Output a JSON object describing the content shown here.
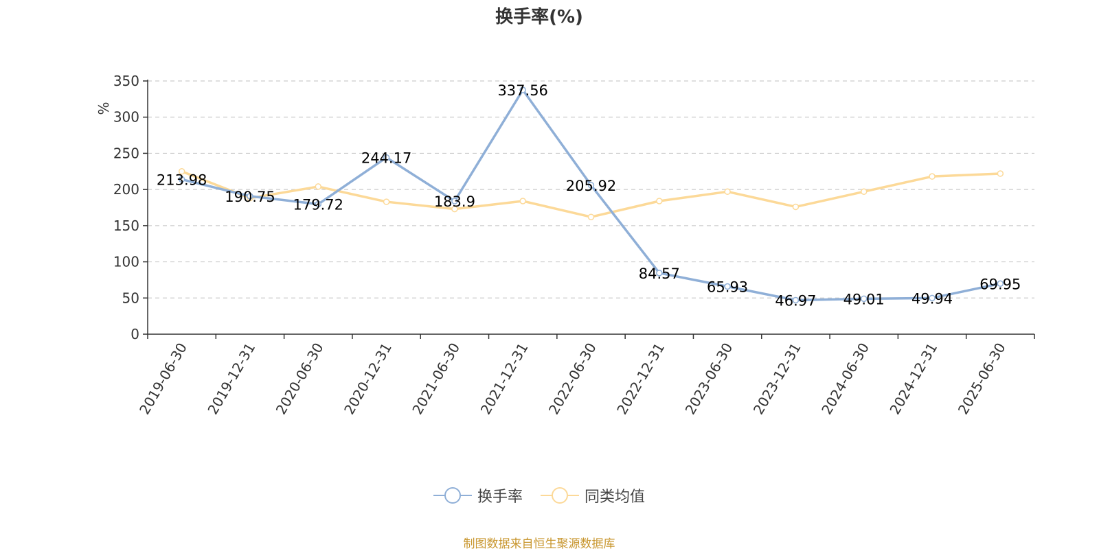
{
  "chart_data": {
    "type": "line",
    "title": "换手率(%)",
    "ylabel": "%",
    "xlabel": "",
    "ylim": [
      0,
      350
    ],
    "yticks": [
      0,
      50,
      100,
      150,
      200,
      250,
      300,
      350
    ],
    "grid": true,
    "legend_position": "bottom",
    "categories": [
      "2019-06-30",
      "2019-12-31",
      "2020-06-30",
      "2020-12-31",
      "2021-06-30",
      "2021-12-31",
      "2022-06-30",
      "2022-12-31",
      "2023-06-30",
      "2023-12-31",
      "2024-06-30",
      "2024-12-31",
      "2025-06-30"
    ],
    "series": [
      {
        "name": "换手率",
        "color": "#8fafd7",
        "values": [
          213.98,
          190.75,
          179.72,
          244.17,
          183.9,
          337.56,
          205.92,
          84.57,
          65.93,
          46.97,
          49.01,
          49.94,
          69.95
        ],
        "labels": [
          "213.98",
          "190.75",
          "179.72",
          "244.17",
          "183.9",
          "337.56",
          "205.92",
          "84.57",
          "65.93",
          "46.97",
          "49.01",
          "49.94",
          "69.95"
        ]
      },
      {
        "name": "同类均值",
        "color": "#fcd998",
        "values": [
          225,
          188,
          204,
          183,
          173,
          184,
          162,
          184,
          197,
          176,
          197,
          218,
          222
        ]
      }
    ],
    "source": "制图数据来自恒生聚源数据库",
    "source_color": "#c8962e",
    "ylabel_color": "#e02020"
  }
}
